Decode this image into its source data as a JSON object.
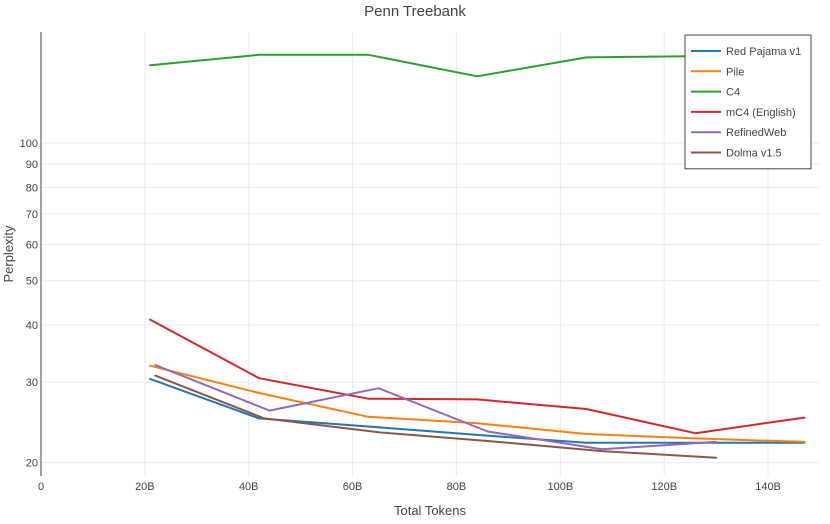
{
  "chart_data": {
    "type": "line",
    "title": "Penn Treebank",
    "xlabel": "Total Tokens",
    "ylabel": "Perplexity",
    "xlim": [
      0,
      150
    ],
    "ylim": [
      18.7,
      175
    ],
    "yscale": "log",
    "x_ticks": [
      {
        "value": 0,
        "label": "0"
      },
      {
        "value": 20,
        "label": "20B"
      },
      {
        "value": 40,
        "label": "40B"
      },
      {
        "value": 60,
        "label": "60B"
      },
      {
        "value": 80,
        "label": "80B"
      },
      {
        "value": 100,
        "label": "100B"
      },
      {
        "value": 120,
        "label": "120B"
      },
      {
        "value": 140,
        "label": "140B"
      }
    ],
    "y_ticks": [
      {
        "value": 20,
        "label": "20"
      },
      {
        "value": 30,
        "label": "30"
      },
      {
        "value": 40,
        "label": "40"
      },
      {
        "value": 50,
        "label": "50"
      },
      {
        "value": 60,
        "label": "60"
      },
      {
        "value": 70,
        "label": "70"
      },
      {
        "value": 80,
        "label": "80"
      },
      {
        "value": 90,
        "label": "90"
      },
      {
        "value": 100,
        "label": "100"
      }
    ],
    "grid": true,
    "legend": "top-right",
    "series": [
      {
        "name": "Red Pajama v1",
        "color": "#1f77b4",
        "x": [
          21,
          42,
          63,
          84,
          105,
          126,
          147
        ],
        "y": [
          30.5,
          25.0,
          24.0,
          23.0,
          22.1,
          22.1,
          22.1
        ]
      },
      {
        "name": "Pile",
        "color": "#ff7f0e",
        "x": [
          21,
          42,
          63,
          84,
          105,
          126,
          147
        ],
        "y": [
          32.6,
          28.4,
          25.2,
          24.4,
          23.1,
          22.6,
          22.2
        ]
      },
      {
        "name": "C4",
        "color": "#2ca02c",
        "x": [
          21,
          42,
          63,
          84,
          105,
          126,
          147
        ],
        "y": [
          148,
          156,
          156,
          140,
          154,
          155,
          156
        ]
      },
      {
        "name": "mC4 (English)",
        "color": "#d62728",
        "x": [
          21,
          42,
          63,
          84,
          105,
          126,
          147
        ],
        "y": [
          41.1,
          30.6,
          27.6,
          27.5,
          26.2,
          23.2,
          25.1
        ]
      },
      {
        "name": "RefinedWeb",
        "color": "#9467bd",
        "x": [
          22,
          44,
          65,
          86,
          108,
          130
        ],
        "y": [
          32.7,
          26.0,
          29.1,
          23.4,
          21.4,
          22.2
        ]
      },
      {
        "name": "Dolma v1.5",
        "color": "#8c564b",
        "x": [
          22,
          43,
          65,
          86,
          108,
          130
        ],
        "y": [
          31.0,
          25.0,
          23.3,
          22.3,
          21.2,
          20.5
        ]
      }
    ]
  }
}
